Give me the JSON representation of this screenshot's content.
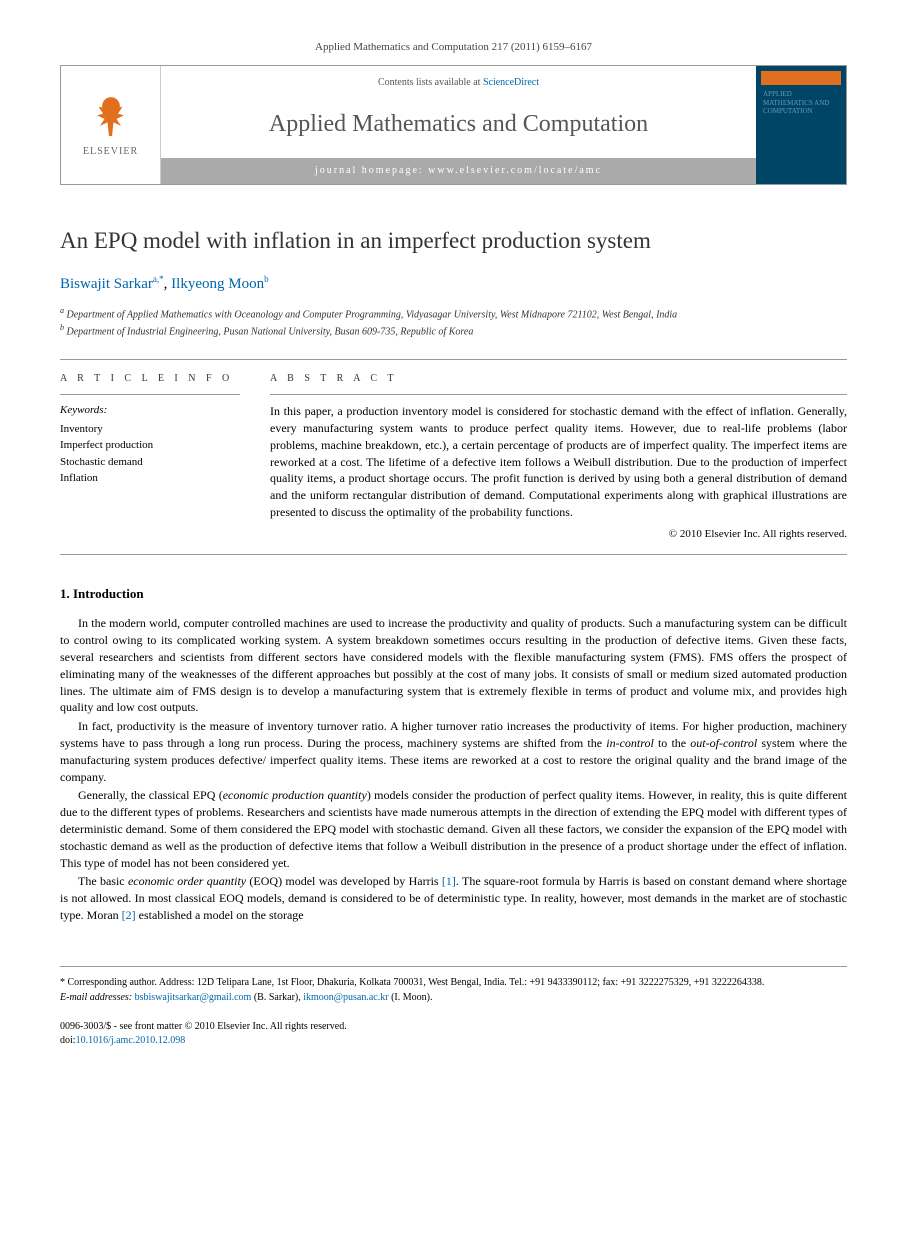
{
  "citation_header": "Applied Mathematics and Computation 217 (2011) 6159–6167",
  "journal_box": {
    "contents_label": "Contents lists available at",
    "sciencedirect": "ScienceDirect",
    "journal_name": "Applied Mathematics and Computation",
    "homepage_label": "journal homepage: www.elsevier.com/locate/amc",
    "publisher_logo_text": "ELSEVIER",
    "cover_title": "APPLIED MATHEMATICS AND COMPUTATION"
  },
  "paper": {
    "title": "An EPQ model with inflation in an imperfect production system",
    "authors": [
      {
        "name": "Biswajit Sarkar",
        "markers": "a,*"
      },
      {
        "name": "Ilkyeong Moon",
        "markers": "b"
      }
    ],
    "authors_combined": "Biswajit Sarkar",
    "author1_marker": "a,*",
    "author2": "Ilkyeong Moon",
    "author2_marker": "b",
    "separator": ", ",
    "affiliations": {
      "a": "Department of Applied Mathematics with Oceanology and Computer Programming, Vidyasagar University, West Midnapore 721102, West Bengal, India",
      "b": "Department of Industrial Engineering, Pusan National University, Busan 609-735, Republic of Korea"
    }
  },
  "article_info": {
    "heading": "A R T I C L E   I N F O",
    "keywords_label": "Keywords:",
    "keywords": [
      "Inventory",
      "Imperfect production",
      "Stochastic demand",
      "Inflation"
    ]
  },
  "abstract": {
    "heading": "A B S T R A C T",
    "text": "In this paper, a production inventory model is considered for stochastic demand with the effect of inflation. Generally, every manufacturing system wants to produce perfect quality items. However, due to real-life problems (labor problems, machine breakdown, etc.), a certain percentage of products are of imperfect quality. The imperfect items are reworked at a cost. The lifetime of a defective item follows a Weibull distribution. Due to the production of imperfect quality items, a product shortage occurs. The profit function is derived by using both a general distribution of demand and the uniform rectangular distribution of demand. Computational experiments along with graphical illustrations are presented to discuss the optimality of the probability functions.",
    "copyright": "© 2010 Elsevier Inc. All rights reserved."
  },
  "sections": {
    "intro_heading": "1. Introduction",
    "intro_p1": "In the modern world, computer controlled machines are used to increase the productivity and quality of products. Such a manufacturing system can be difficult to control owing to its complicated working system. A system breakdown sometimes occurs resulting in the production of defective items. Given these facts, several researchers and scientists from different sectors have considered models with the flexible manufacturing system (FMS). FMS offers the prospect of eliminating many of the weaknesses of the different approaches but possibly at the cost of many jobs. It consists of small or medium sized automated production lines. The ultimate aim of FMS design is to develop a manufacturing system that is extremely flexible in terms of product and volume mix, and provides high quality and low cost outputs.",
    "intro_p2_pre": "In fact, productivity is the measure of inventory turnover ratio. A higher turnover ratio increases the productivity of items. For higher production, machinery systems have to pass through a long run process. During the process, machinery systems are shifted from the ",
    "intro_p2_italic1": "in-control",
    "intro_p2_mid": " to the ",
    "intro_p2_italic2": "out-of-control",
    "intro_p2_post": " system where the manufacturing system produces defective/ imperfect quality items. These items are reworked at a cost to restore the original quality and the brand image of the company.",
    "intro_p3_pre": "Generally, the classical EPQ (",
    "intro_p3_italic": "economic production quantity",
    "intro_p3_post": ") models consider the production of perfect quality items. However, in reality, this is quite different due to the different types of problems. Researchers and scientists have made numerous attempts in the direction of extending the EPQ model with different types of deterministic demand. Some of them considered the EPQ model with stochastic demand. Given all these factors, we consider the expansion of the EPQ model with stochastic demand as well as the production of defective items that follow a Weibull distribution in the presence of a product shortage under the effect of inflation. This type of model has not been considered yet.",
    "intro_p4_pre": "The basic ",
    "intro_p4_italic": "economic order quantity",
    "intro_p4_mid1": " (EOQ) model was developed by Harris ",
    "intro_p4_ref1": "[1]",
    "intro_p4_mid2": ". The square-root formula by Harris is based on constant demand where shortage is not allowed. In most classical EOQ models, demand is considered to be of deterministic type. In reality, however, most demands in the market are of stochastic type. Moran ",
    "intro_p4_ref2": "[2]",
    "intro_p4_post": " established a model on the storage"
  },
  "footer": {
    "corresponding": "* Corresponding author. Address: 12D Telipara Lane, 1st Floor, Dhakuria, Kolkata 700031, West Bengal, India. Tel.: +91 9433390112; fax: +91 3222275329, +91 3222264338.",
    "email_label": "E-mail addresses:",
    "email1": "bsbiswajitsarkar@gmail.com",
    "email1_name": "(B. Sarkar),",
    "email2": "ikmoon@pusan.ac.kr",
    "email2_name": "(I. Moon).",
    "issn": "0096-3003/$ - see front matter © 2010 Elsevier Inc. All rights reserved.",
    "doi_label": "doi:",
    "doi": "10.1016/j.amc.2010.12.098"
  },
  "colors": {
    "link": "#0066aa",
    "elsevier_orange": "#e07020",
    "cover_blue": "#004466",
    "text": "#000000",
    "gray_bar": "#aaaaaa"
  }
}
